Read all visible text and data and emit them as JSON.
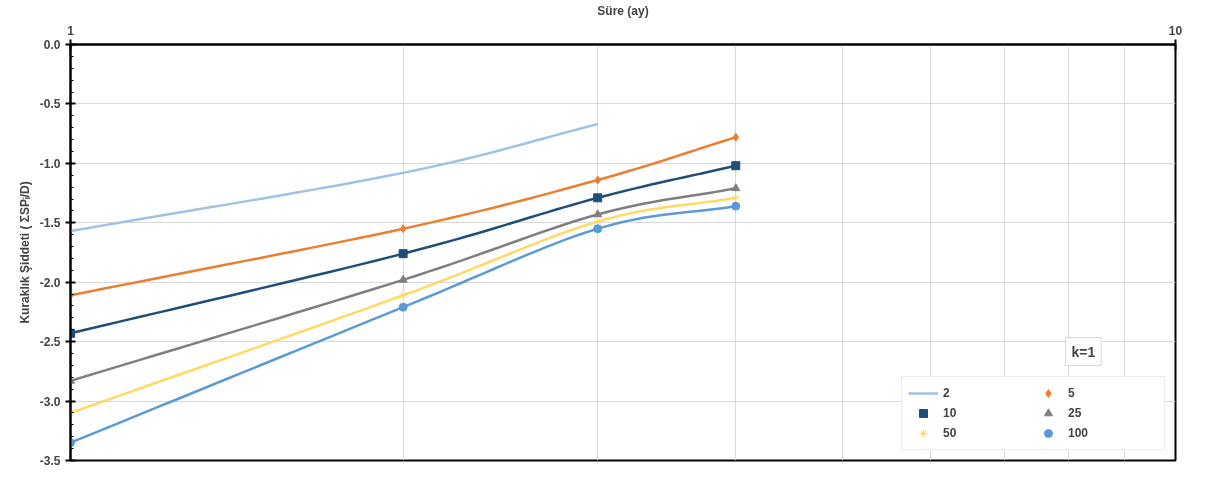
{
  "chart_data": {
    "type": "line",
    "xlabel": "Süre (ay)",
    "ylabel": "Kuraklık Şiddeti ( ΣSPᵢ/D)",
    "log": "x",
    "xlim": [
      1,
      10
    ],
    "xticks": [
      1,
      10
    ],
    "ylim": [
      -3.5,
      0
    ],
    "yticks": [
      {
        "value": -3.5,
        "label": "-3.5"
      },
      {
        "value": -3.0,
        "label": "-3.0"
      },
      {
        "value": -2.5,
        "label": "-2.5"
      },
      {
        "value": -2.0,
        "label": "-2.0"
      },
      {
        "value": -1.5,
        "label": "-1.5"
      },
      {
        "value": -1.0,
        "label": "-1.0"
      },
      {
        "value": -0.5,
        "label": "-0.5"
      },
      {
        "value": 0,
        "label": "0.0"
      }
    ],
    "grid": true,
    "legend": "bottom right",
    "annotations": [
      "k=1"
    ],
    "series": [
      {
        "name": "2",
        "color": "#9dc3e6",
        "marker": "none",
        "x": [
          1,
          2,
          3
        ],
        "values": [
          -1.57,
          -1.08,
          -0.67
        ]
      },
      {
        "name": "5",
        "color": "#ed7d31",
        "marker": "diamond",
        "x": [
          1,
          2,
          3,
          4
        ],
        "values": [
          -2.11,
          -1.55,
          -1.14,
          -0.78
        ]
      },
      {
        "name": "10",
        "color": "#1f4e79",
        "marker": "square",
        "x": [
          1,
          2,
          3,
          4
        ],
        "values": [
          -2.43,
          -1.76,
          -1.29,
          -1.02
        ]
      },
      {
        "name": "25",
        "color": "#7f7f7f",
        "marker": "triangle",
        "x": [
          1,
          2,
          3,
          4
        ],
        "values": [
          -2.83,
          -1.98,
          -1.43,
          -1.21
        ]
      },
      {
        "name": "50",
        "color": "#ffd966",
        "marker": "cross",
        "x": [
          1,
          2,
          3,
          4
        ],
        "values": [
          -3.1,
          -2.11,
          -1.49,
          -1.29
        ]
      },
      {
        "name": "100",
        "color": "#5b9bd5",
        "marker": "circle",
        "x": [
          1,
          2,
          3,
          4
        ],
        "values": [
          -3.35,
          -2.21,
          -1.55,
          -1.36
        ]
      }
    ]
  }
}
